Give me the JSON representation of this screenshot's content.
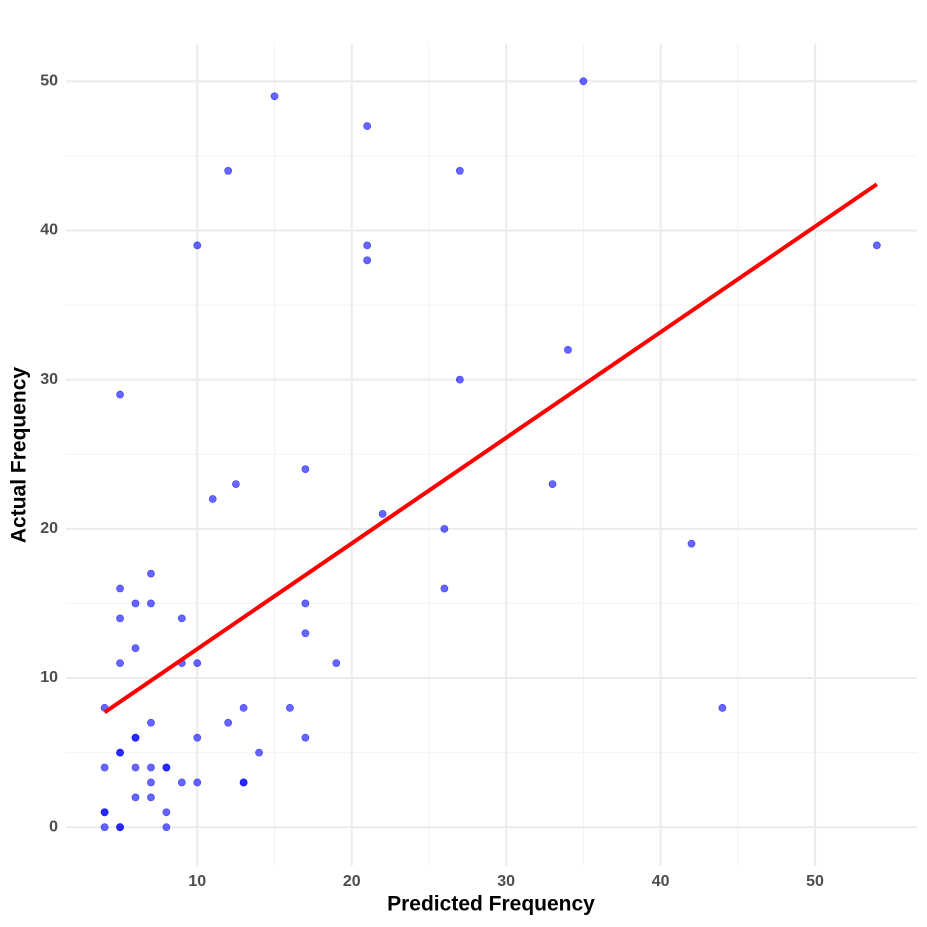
{
  "chart_data": {
    "type": "scatter",
    "x_label": "Predicted Frequency",
    "y_label": "Actual Frequency",
    "xlim": [
      1.5,
      56.6
    ],
    "ylim": [
      -2.6,
      52.5
    ],
    "xticks": [
      10,
      20,
      30,
      40,
      50
    ],
    "yticks": [
      0,
      10,
      20,
      30,
      40,
      50
    ],
    "grid": true,
    "points": {
      "color": "#0000ff",
      "x": [
        4,
        4,
        4,
        4,
        4,
        5,
        5,
        5,
        5,
        5,
        5,
        5,
        5,
        6,
        6,
        6,
        6,
        6,
        6,
        7,
        7,
        7,
        7,
        7,
        7,
        8,
        8,
        8,
        8,
        9,
        9,
        9,
        10,
        10,
        10,
        10,
        11,
        12,
        12,
        12.5,
        13,
        13,
        13,
        14,
        15,
        16,
        17,
        17,
        17,
        17,
        19,
        21,
        21,
        21,
        22,
        26,
        26,
        27,
        27,
        33,
        34,
        35,
        42,
        44,
        54
      ],
      "y": [
        8,
        4,
        1,
        1,
        0,
        29,
        16,
        14,
        11,
        5,
        5,
        0,
        0,
        15,
        12,
        6,
        6,
        4,
        2,
        17,
        15,
        7,
        4,
        3,
        2,
        4,
        4,
        1,
        0,
        14,
        11,
        3,
        39,
        11,
        6,
        3,
        22,
        44,
        7,
        23,
        8,
        3,
        3,
        5,
        49,
        8,
        24,
        15,
        13,
        6,
        11,
        47,
        39,
        38,
        21,
        20,
        16,
        44,
        30,
        23,
        32,
        50,
        19,
        8,
        39
      ]
    },
    "trend_line": {
      "color": "#ff0000",
      "x": [
        4,
        54
      ],
      "y": [
        7.7,
        43.1
      ]
    }
  }
}
